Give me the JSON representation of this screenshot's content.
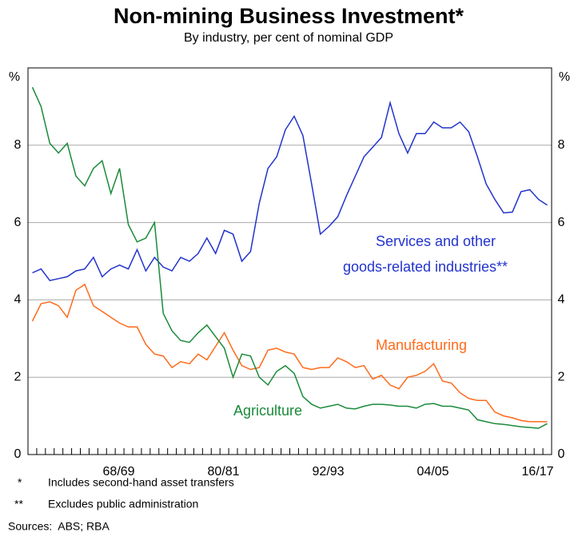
{
  "chart_data": {
    "type": "line",
    "title": "Non-mining Business Investment*",
    "subtitle": "By industry, per cent of nominal GDP",
    "y_unit": "%",
    "y2_unit": "%",
    "categories": [
      null,
      null,
      null,
      null,
      null,
      null,
      null,
      null,
      null,
      null,
      null,
      "68/69",
      null,
      null,
      null,
      null,
      null,
      null,
      null,
      null,
      null,
      null,
      null,
      "80/81",
      null,
      null,
      null,
      null,
      null,
      null,
      null,
      null,
      null,
      null,
      null,
      "92/93",
      null,
      null,
      null,
      null,
      null,
      null,
      null,
      null,
      null,
      null,
      null,
      "04/05",
      null,
      null,
      null,
      null,
      null,
      null,
      null,
      null,
      null,
      null,
      null,
      "16/17"
    ],
    "series": [
      {
        "name": "Services and other goods-related industries**",
        "color": "#2233cc",
        "values": [
          4.7,
          4.8,
          4.5,
          4.55,
          4.6,
          4.75,
          4.8,
          5.1,
          4.6,
          4.8,
          4.9,
          4.8,
          5.3,
          4.75,
          5.1,
          4.85,
          4.75,
          5.1,
          5.0,
          5.2,
          5.6,
          5.2,
          5.8,
          5.7,
          5.0,
          5.25,
          6.5,
          7.4,
          7.7,
          8.4,
          8.75,
          8.25,
          7.0,
          5.7,
          5.9,
          6.15,
          6.7,
          7.2,
          7.7,
          7.95,
          8.2,
          9.1,
          8.3,
          7.8,
          8.3,
          8.3,
          8.6,
          8.45,
          8.45,
          8.6,
          8.35,
          7.7,
          7.0,
          6.6,
          6.25,
          6.27,
          6.8,
          6.85,
          6.6,
          6.45
        ]
      },
      {
        "name": "Manufacturing",
        "color": "#ff6a1a",
        "values": [
          3.45,
          3.9,
          3.95,
          3.85,
          3.55,
          4.25,
          4.4,
          3.85,
          3.7,
          3.55,
          3.4,
          3.3,
          3.3,
          2.85,
          2.6,
          2.55,
          2.25,
          2.4,
          2.35,
          2.6,
          2.45,
          2.8,
          3.15,
          2.7,
          2.3,
          2.2,
          2.25,
          2.7,
          2.75,
          2.65,
          2.6,
          2.25,
          2.2,
          2.25,
          2.25,
          2.5,
          2.4,
          2.25,
          2.3,
          1.95,
          2.05,
          1.8,
          1.7,
          2.0,
          2.05,
          2.15,
          2.35,
          1.9,
          1.85,
          1.6,
          1.45,
          1.4,
          1.4,
          1.1,
          1.0,
          0.95,
          0.88,
          0.85,
          0.85,
          0.85
        ]
      },
      {
        "name": "Agriculture",
        "color": "#1a8a3a",
        "values": [
          9.5,
          9.0,
          8.05,
          7.8,
          8.05,
          7.2,
          6.95,
          7.4,
          7.6,
          6.75,
          7.4,
          5.95,
          5.5,
          5.6,
          6.0,
          3.65,
          3.2,
          2.95,
          2.9,
          3.15,
          3.35,
          3.05,
          2.75,
          2.0,
          2.6,
          2.55,
          2.0,
          1.8,
          2.15,
          2.3,
          2.1,
          1.5,
          1.3,
          1.2,
          1.25,
          1.3,
          1.2,
          1.18,
          1.25,
          1.3,
          1.3,
          1.28,
          1.25,
          1.25,
          1.2,
          1.3,
          1.32,
          1.25,
          1.25,
          1.2,
          1.15,
          0.9,
          0.85,
          0.8,
          0.78,
          0.75,
          0.72,
          0.7,
          0.68,
          0.8
        ]
      }
    ],
    "annotations": [
      "Services and other",
      "goods-related industries**",
      "Manufacturing",
      "Agriculture"
    ],
    "ylim": [
      0,
      10
    ],
    "yticks": [
      0,
      2,
      4,
      6,
      8
    ],
    "y2lim": [
      0,
      10
    ],
    "y2ticks": [
      0,
      2,
      4,
      6,
      8
    ],
    "grid": true,
    "notes": [
      {
        "marker": "*",
        "text": "Includes second-hand asset transfers"
      },
      {
        "marker": "**",
        "text": "Excludes public administration"
      }
    ],
    "sources": "Sources:  ABS; RBA"
  }
}
